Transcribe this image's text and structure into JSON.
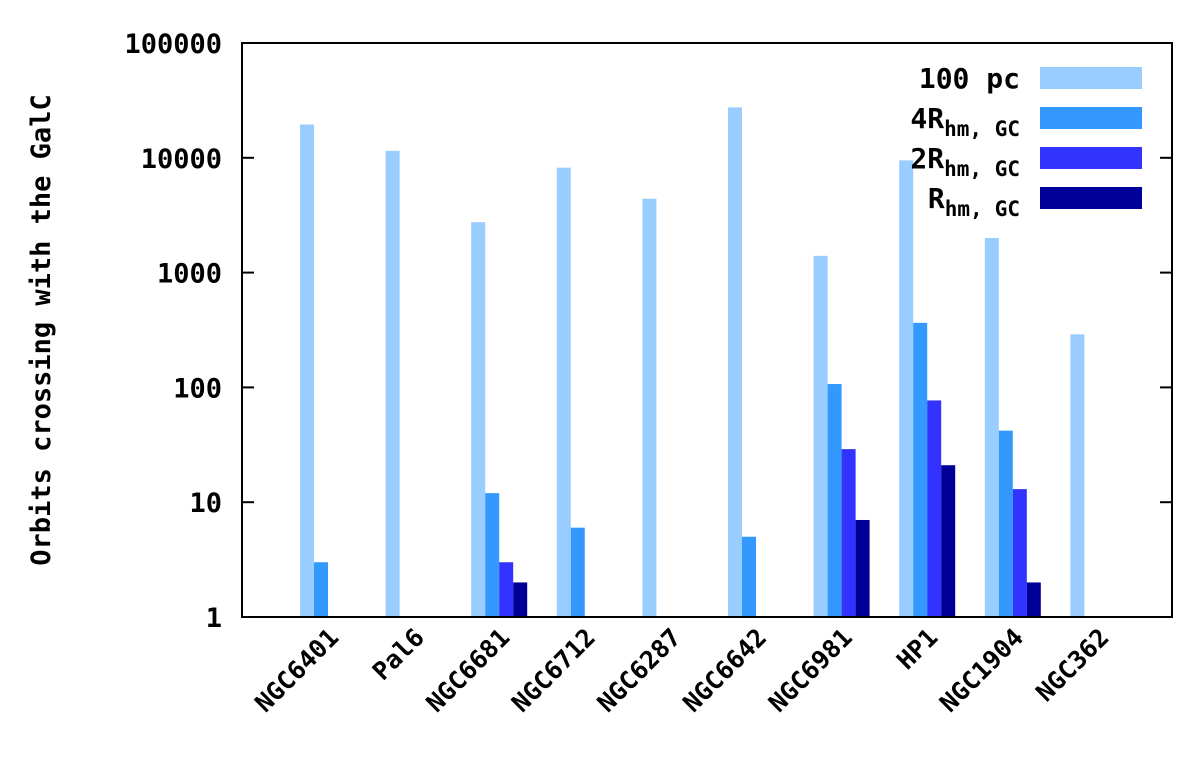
{
  "chart_data": {
    "type": "bar",
    "scale_y": "log",
    "ylabel": "Orbits crossing with the GalC",
    "ylim": [
      1,
      100000
    ],
    "yticks": [
      {
        "value": 1,
        "label": "1"
      },
      {
        "value": 10,
        "label": "10"
      },
      {
        "value": 100,
        "label": "100"
      },
      {
        "value": 1000,
        "label": "1000"
      },
      {
        "value": 10000,
        "label": "10000"
      },
      {
        "value": 100000,
        "label": "100000"
      }
    ],
    "categories": [
      "NGC6401",
      "Pal6",
      "NGC6681",
      "NGC6712",
      "NGC6287",
      "NGC6642",
      "NGC6981",
      "HP1",
      "NGC1904",
      "NGC362"
    ],
    "legend_position": "top-right",
    "grid": false,
    "series": [
      {
        "name": "100 pc",
        "color": "#99ccff",
        "values": [
          19500,
          11500,
          2750,
          8200,
          4400,
          27500,
          1400,
          9500,
          2000,
          290
        ]
      },
      {
        "name_main": "4R",
        "name_sub": "hm, GC",
        "color": "#3399ff",
        "values": [
          3,
          null,
          12,
          6,
          null,
          5,
          107,
          365,
          42,
          null
        ]
      },
      {
        "name_main": "2R",
        "name_sub": "hm, GC",
        "color": "#3333ff",
        "values": [
          null,
          null,
          3,
          null,
          null,
          null,
          29,
          77,
          13,
          null
        ]
      },
      {
        "name_main": "R",
        "name_sub": "hm,",
        "name_tail": "GC",
        "color": "#000099",
        "values": [
          null,
          null,
          2,
          null,
          null,
          null,
          7,
          21,
          2,
          null
        ]
      }
    ]
  }
}
